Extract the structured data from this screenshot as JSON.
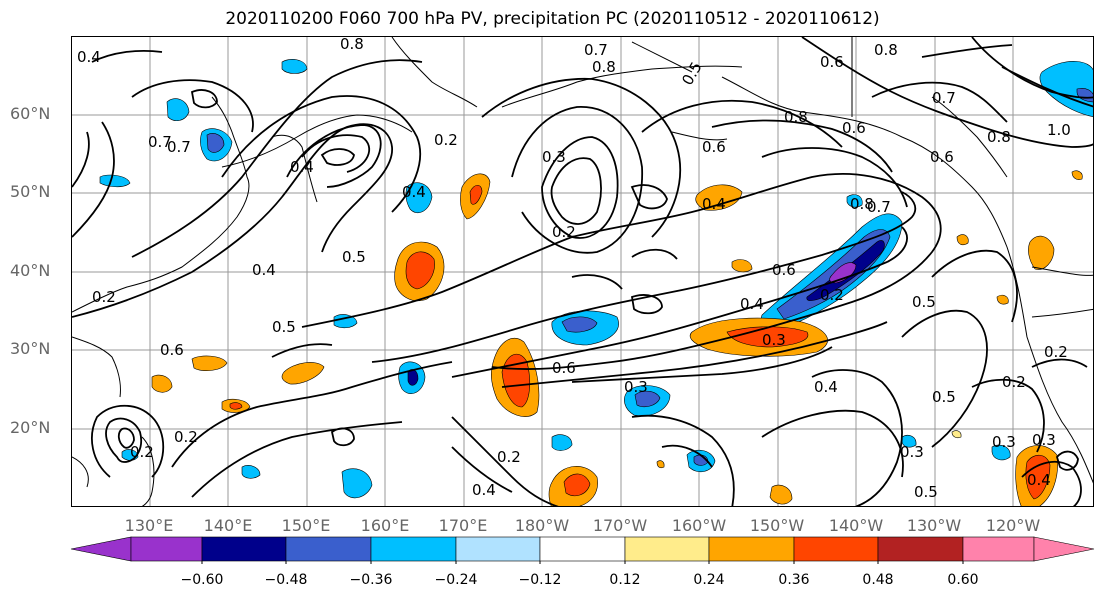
{
  "title": "2020110200 F060 700 hPa PV, precipitation PC (2020110512 - 2020110612)",
  "lat_labels": [
    "60°N",
    "50°N",
    "40°N",
    "30°N",
    "20°N"
  ],
  "lon_labels": [
    "130°E",
    "140°E",
    "150°E",
    "160°E",
    "170°E",
    "180°W",
    "170°W",
    "160°W",
    "150°W",
    "140°W",
    "130°W",
    "120°W"
  ],
  "contour_labels": [
    "0.8",
    "0.7",
    "0.8",
    "0.6",
    "0.5",
    "0.8",
    "0.7",
    "0.6",
    "0.8",
    "1.0",
    "0.6",
    "0.8",
    "0.4",
    "0.2",
    "0.3",
    "0.7",
    "0.4",
    "0.5",
    "0.2",
    "0.4",
    "0.6",
    "0.8",
    "0.7",
    "0.6",
    "0.2",
    "0.5",
    "0.4",
    "0.5",
    "0.4",
    "0.3",
    "0.6",
    "0.3",
    "0.4",
    "0.5",
    "0.3",
    "0.2",
    "0.2",
    "0.2",
    "0.4",
    "0.3",
    "0.5",
    "0.2",
    "0.6",
    "0.2",
    "0.4",
    "0.7",
    "0.2",
    "0.3",
    "0.4"
  ],
  "colorbar": {
    "ticks": [
      "−0.60",
      "−0.48",
      "−0.36",
      "−0.24",
      "−0.12",
      "0.12",
      "0.24",
      "0.36",
      "0.48",
      "0.60"
    ],
    "colors": [
      "#9932cc",
      "#00008b",
      "#3a5fcd",
      "#00bfff",
      "#b0e2ff",
      "#ffffff",
      "#ffec8b",
      "#ffa500",
      "#ff4500",
      "#b22222",
      "#ff82ab"
    ]
  }
}
